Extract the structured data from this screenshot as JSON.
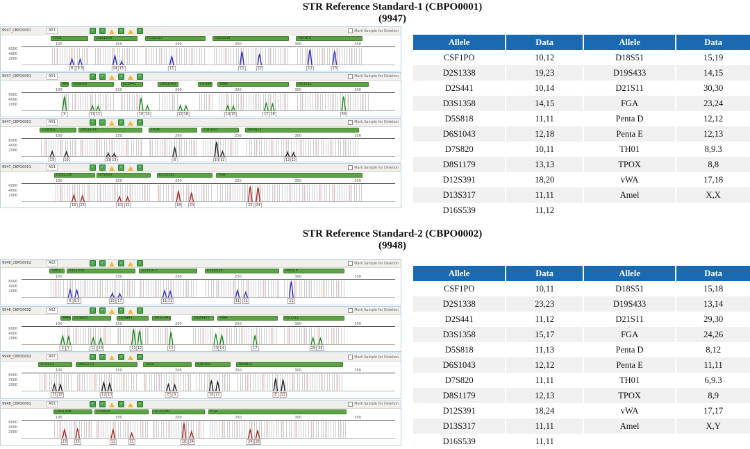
{
  "panel_common": {
    "checkbox_label": "Mark Sample for Deletion",
    "flag_icons": [
      "ok",
      "ok",
      "warn",
      "ok",
      "warn",
      "ok"
    ],
    "ruler_ticks": [
      {
        "x": 0.1,
        "label": "100"
      },
      {
        "x": 0.26,
        "label": "150"
      },
      {
        "x": 0.42,
        "label": "200"
      },
      {
        "x": 0.58,
        "label": "250"
      },
      {
        "x": 0.74,
        "label": "300"
      },
      {
        "x": 0.9,
        "label": "350"
      }
    ],
    "y_ticks": [
      "6000",
      "4000",
      "2000"
    ],
    "colors": {
      "locus_bar": "#5ba344",
      "bin_line": "#cdcdcd",
      "bin_highlight": "#f4dede",
      "table_header": "#1a6ab1",
      "dye_blue": "#2b2fb5",
      "dye_green": "#1c871c",
      "dye_black": "#1f1f1f",
      "dye_red": "#9e2b25"
    }
  },
  "sections": [
    {
      "title_line1": "STR Reference Standard-1 (CBPO0001)",
      "title_line2": "(9947)",
      "table": {
        "headers": [
          "Allele",
          "Data",
          "Allele",
          "Data"
        ],
        "rows": [
          [
            "CSF1PO",
            "10,12",
            "D18S51",
            "15,19"
          ],
          [
            "D2S1338",
            "19,23",
            "D19S433",
            "14,15"
          ],
          [
            "D2S441",
            "10,14",
            "D21S11",
            "30,30"
          ],
          [
            "D3S1358",
            "14,15",
            "FGA",
            "23,24"
          ],
          [
            "D5S818",
            "11,11",
            "Penta D",
            "12,12"
          ],
          [
            "D6S1043",
            "12,18",
            "Penta E",
            "12,13"
          ],
          [
            "D7S820",
            "10,11",
            "TH01",
            "8,9.3"
          ],
          [
            "D8S1179",
            "13,13",
            "TPOX",
            "8,8"
          ],
          [
            "D12S391",
            "18,20",
            "vWA",
            "17,18"
          ],
          [
            "D13S317",
            "11,11",
            "Amel",
            "X,X"
          ],
          [
            "D16S539",
            "11,12",
            "",
            ""
          ]
        ]
      },
      "panels": [
        {
          "sample_name": "9947_CBPO0001",
          "well": "A01",
          "dye": "#2b2fb5",
          "loci": [
            [
              "TH01",
              0.078,
              0.1
            ],
            [
              "D3S1358",
              0.194,
              0.117
            ],
            [
              "D13S317",
              0.33,
              0.162
            ],
            [
              "D16S539",
              0.511,
              0.204
            ],
            [
              "Penta E",
              0.735,
              0.178
            ]
          ],
          "peaks": [
            [
              0.135,
              0.35,
              "8"
            ],
            [
              0.157,
              0.33,
              "9.3"
            ],
            [
              0.25,
              0.55,
              "14"
            ],
            [
              0.268,
              0.2,
              "15"
            ],
            [
              0.402,
              0.5,
              "11"
            ],
            [
              0.59,
              0.75,
              "11"
            ],
            [
              0.637,
              0.62,
              "12"
            ],
            [
              0.772,
              0.88,
              "12"
            ],
            [
              0.838,
              0.78,
              "13"
            ]
          ]
        },
        {
          "sample_name": "9947_CBPO0001",
          "well": "A01",
          "dye": "#1c871c",
          "loci": [
            [
              "AMEL",
              0.105,
              0.022
            ],
            [
              "D5S818",
              0.133,
              0.115
            ],
            [
              "D2S441",
              0.265,
              0.06
            ],
            [
              "D6S1043",
              0.365,
              0.055
            ],
            [
              "D19S433",
              0.472,
              0.04
            ],
            [
              "vWA",
              0.525,
              0.19
            ],
            [
              "D21S11",
              0.735,
              0.195
            ]
          ],
          "peaks": [
            [
              0.115,
              0.8,
              "X"
            ],
            [
              0.19,
              0.3,
              "11"
            ],
            [
              0.205,
              0.27,
              "11"
            ],
            [
              0.32,
              0.72,
              "10"
            ],
            [
              0.337,
              0.3,
              "14"
            ],
            [
              0.425,
              0.32,
              "12"
            ],
            [
              0.44,
              0.3,
              "18"
            ],
            [
              0.552,
              0.3,
              "14"
            ],
            [
              0.567,
              0.28,
              "15"
            ],
            [
              0.655,
              0.45,
              "17"
            ],
            [
              0.672,
              0.4,
              "18"
            ],
            [
              0.862,
              0.8,
              "30"
            ]
          ]
        },
        {
          "sample_name": "9947_CBPO0001",
          "well": "A01",
          "dye": "#1f1f1f",
          "loci": [
            [
              "D18S51",
              0.049,
              0.097
            ],
            [
              "D8S1179",
              0.152,
              0.171
            ],
            [
              "TPOX",
              0.34,
              0.13
            ],
            [
              "CSF1PO",
              0.482,
              0.1
            ],
            [
              "Penta D",
              0.599,
              0.304
            ]
          ],
          "peaks": [
            [
              0.082,
              0.3,
              "15"
            ],
            [
              0.12,
              0.28,
              "19"
            ],
            [
              0.232,
              0.2,
              "13"
            ],
            [
              0.248,
              0.18,
              "13"
            ],
            [
              0.41,
              0.52,
              "8"
            ],
            [
              0.522,
              0.82,
              "10"
            ],
            [
              0.538,
              0.3,
              "12"
            ],
            [
              0.712,
              0.25,
              "12"
            ],
            [
              0.728,
              0.22,
              "12"
            ]
          ]
        },
        {
          "sample_name": "9947_CBPO0001",
          "well": "A01",
          "dye": "#9e2b25",
          "loci": [
            [
              "D2S1338",
              0.087,
              0.11
            ],
            [
              "D7S820",
              0.2,
              0.146
            ],
            [
              "D12S391",
              0.362,
              0.149
            ],
            [
              "FGA",
              0.521,
              0.392
            ]
          ],
          "peaks": [
            [
              0.14,
              0.38,
              "19"
            ],
            [
              0.163,
              0.35,
              "23"
            ],
            [
              0.262,
              0.3,
              "10"
            ],
            [
              0.284,
              0.27,
              "11"
            ],
            [
              0.42,
              0.6,
              "18"
            ],
            [
              0.455,
              0.5,
              "20"
            ],
            [
              0.612,
              0.85,
              "23"
            ],
            [
              0.633,
              0.8,
              "24"
            ]
          ]
        }
      ]
    },
    {
      "title_line1": "STR Reference Standard-2 (CBPO0002)",
      "title_line2": "(9948)",
      "table": {
        "headers": [
          "Allele",
          "Data",
          "Allele",
          "Data"
        ],
        "rows": [
          [
            "CSF1PO",
            "10,11",
            "D18S51",
            "15,18"
          ],
          [
            "D2S1338",
            "23,23",
            "D19S433",
            "13,14"
          ],
          [
            "D2S441",
            "11,12",
            "D21S11",
            "29,30"
          ],
          [
            "D3S1358",
            "15,17",
            "FGA",
            "24,26"
          ],
          [
            "D5S818",
            "11,13",
            "Penta D",
            "8,12"
          ],
          [
            "D6S1043",
            "12,12",
            "Penta E",
            "11,11"
          ],
          [
            "D7S820",
            "11,11",
            "TH01",
            "6,9.3"
          ],
          [
            "D8S1179",
            "12,13",
            "TPOX",
            "8,9"
          ],
          [
            "D12S391",
            "18,24",
            "vWA",
            "17,17"
          ],
          [
            "D13S317",
            "11,11",
            "Amel",
            "X,Y"
          ],
          [
            "D16S539",
            "11,11",
            "",
            ""
          ]
        ]
      },
      "panels": [
        {
          "sample_name": "9948_CBPO0002",
          "well": "A02",
          "dye": "#2b2fb5",
          "loci": [
            [
              "TH01",
              0.075,
              0.04
            ],
            [
              "D3S1358",
              0.12,
              0.185
            ],
            [
              "D13S317",
              0.315,
              0.155
            ],
            [
              "D16S539",
              0.49,
              0.2
            ],
            [
              "Penta E",
              0.7,
              0.165
            ]
          ],
          "peaks": [
            [
              0.13,
              0.45,
              "6"
            ],
            [
              0.148,
              0.42,
              "9.3"
            ],
            [
              0.243,
              0.25,
              "15"
            ],
            [
              0.263,
              0.23,
              "17"
            ],
            [
              0.383,
              0.4,
              "11"
            ],
            [
              0.398,
              0.36,
              "11"
            ],
            [
              0.578,
              0.42,
              "11"
            ],
            [
              0.6,
              0.3,
              "11"
            ],
            [
              0.722,
              0.9,
              "11"
            ]
          ]
        },
        {
          "sample_name": "9948_CBPO0002",
          "well": "A02",
          "dye": "#1c871c",
          "loci": [
            [
              "AMEL",
              0.105,
              0.027
            ],
            [
              "D5S818",
              0.135,
              0.105
            ],
            [
              "D2S441",
              0.255,
              0.085
            ],
            [
              "D6S1043",
              0.35,
              0.05
            ],
            [
              "D19S433",
              0.455,
              0.06
            ],
            [
              "vWA",
              0.525,
              0.16
            ],
            [
              "D21S11",
              0.7,
              0.165
            ]
          ],
          "peaks": [
            [
              0.11,
              0.5,
              "X"
            ],
            [
              0.126,
              0.47,
              "Y"
            ],
            [
              0.192,
              0.4,
              "11"
            ],
            [
              0.212,
              0.37,
              "13"
            ],
            [
              0.3,
              0.85,
              "11"
            ],
            [
              0.316,
              0.78,
              "12"
            ],
            [
              0.4,
              0.7,
              "12"
            ],
            [
              0.52,
              0.6,
              "13"
            ],
            [
              0.536,
              0.55,
              "14"
            ],
            [
              0.625,
              0.52,
              "17"
            ],
            [
              0.78,
              0.4,
              "29"
            ],
            [
              0.8,
              0.37,
              "30"
            ]
          ]
        },
        {
          "sample_name": "9948_CBPO0002",
          "well": "A02",
          "dye": "#1f1f1f",
          "loci": [
            [
              "D18S51",
              0.045,
              0.09
            ],
            [
              "D8S1179",
              0.145,
              0.165
            ],
            [
              "TPOX",
              0.325,
              0.13
            ],
            [
              "CSF1PO",
              0.465,
              0.095
            ],
            [
              "Penta D",
              0.575,
              0.285
            ]
          ],
          "peaks": [
            [
              0.088,
              0.4,
              "15"
            ],
            [
              0.104,
              0.37,
              "18"
            ],
            [
              0.22,
              0.5,
              "12"
            ],
            [
              0.236,
              0.45,
              "13"
            ],
            [
              0.393,
              0.4,
              "8"
            ],
            [
              0.41,
              0.37,
              "9"
            ],
            [
              0.508,
              0.6,
              "10"
            ],
            [
              0.525,
              0.55,
              "11"
            ],
            [
              0.68,
              0.7,
              "8"
            ],
            [
              0.7,
              0.64,
              "12"
            ]
          ]
        },
        {
          "sample_name": "9948_CBPO0002",
          "well": "A02",
          "dye": "#9e2b25",
          "loci": [
            [
              "D2S1338",
              0.085,
              0.105
            ],
            [
              "D7S820",
              0.195,
              0.145
            ],
            [
              "D12S391",
              0.35,
              0.14
            ],
            [
              "FGA",
              0.5,
              0.37
            ]
          ],
          "peaks": [
            [
              0.115,
              0.5,
              "23"
            ],
            [
              0.15,
              0.55,
              "23"
            ],
            [
              0.245,
              0.5,
              "11"
            ],
            [
              0.295,
              0.3,
              "11"
            ],
            [
              0.435,
              0.85,
              "18"
            ],
            [
              0.455,
              0.4,
              "24"
            ],
            [
              0.612,
              0.5,
              "24"
            ],
            [
              0.632,
              0.45,
              "26"
            ]
          ]
        }
      ]
    }
  ]
}
